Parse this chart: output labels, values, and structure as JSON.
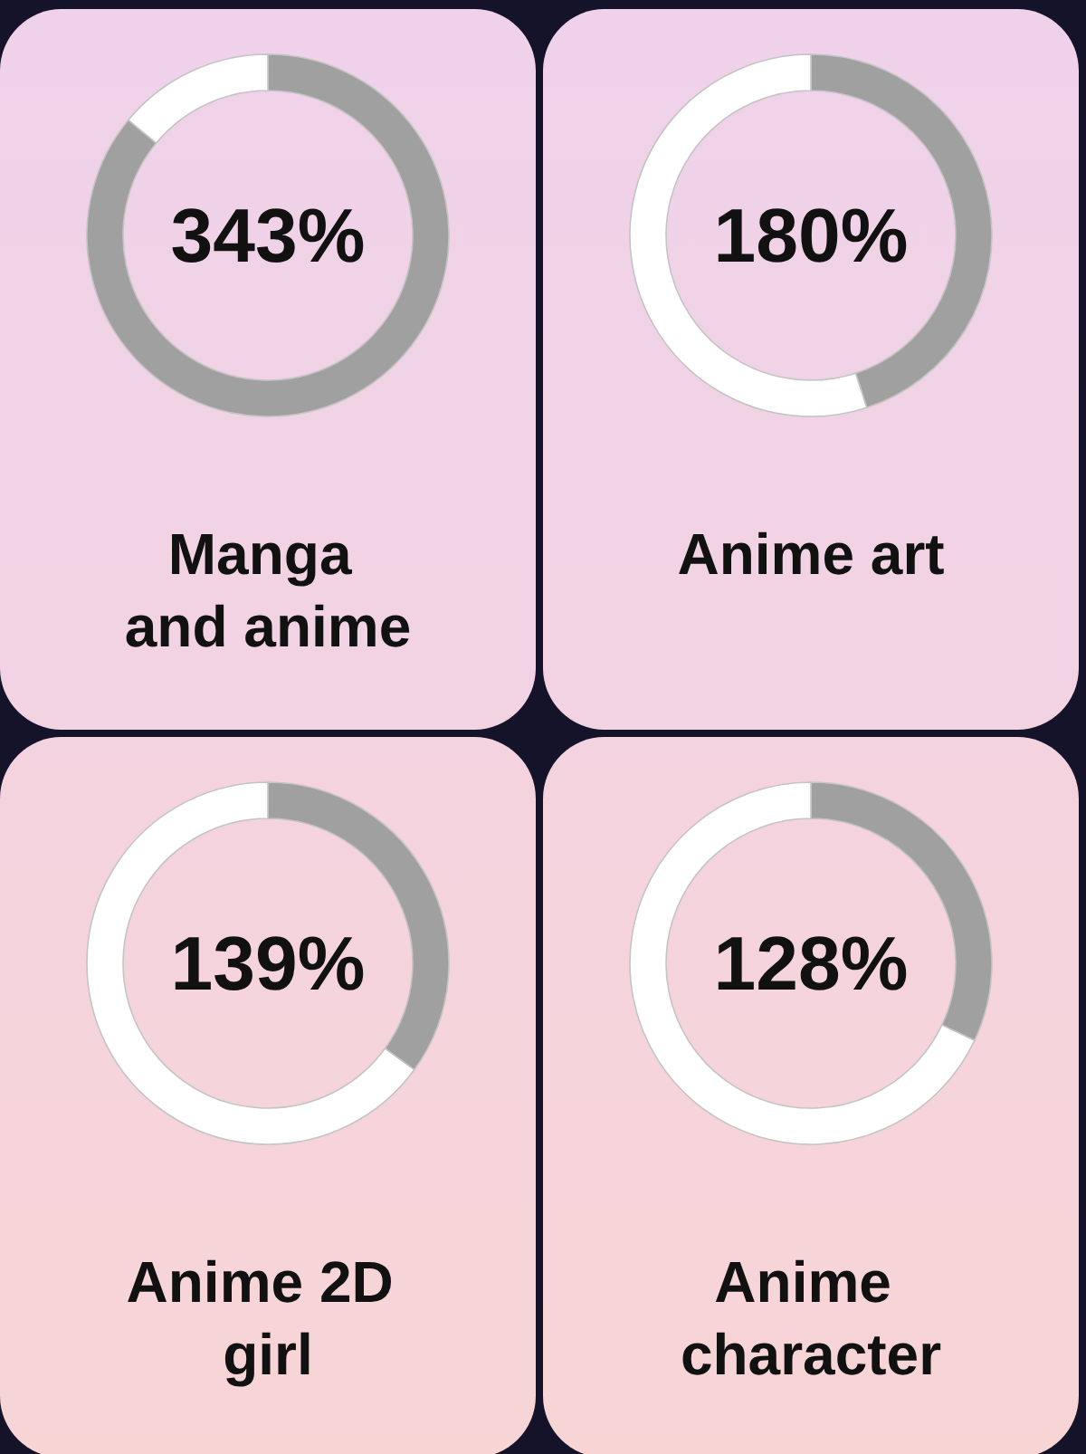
{
  "chart_data": [
    {
      "type": "donut",
      "title": "Manga and anime",
      "categories": [
        null,
        null
      ],
      "values": [
        86,
        14
      ],
      "colors": [
        "#a0a0a0",
        "#ffffff"
      ],
      "annotations": [
        "343%"
      ]
    },
    {
      "type": "donut",
      "title": "Anime art",
      "categories": [
        null,
        null
      ],
      "values": [
        45,
        55
      ],
      "colors": [
        "#a0a0a0",
        "#ffffff"
      ],
      "annotations": [
        "180%"
      ]
    },
    {
      "type": "donut",
      "title": "Anime 2D girl",
      "categories": [
        null,
        null
      ],
      "values": [
        35,
        65
      ],
      "colors": [
        "#a0a0a0",
        "#ffffff"
      ],
      "annotations": [
        "139%"
      ]
    },
    {
      "type": "donut",
      "title": "Anime character",
      "categories": [
        null,
        null
      ],
      "values": [
        32,
        68
      ],
      "colors": [
        "#a0a0a0",
        "#ffffff"
      ],
      "annotations": [
        "128%"
      ]
    }
  ]
}
